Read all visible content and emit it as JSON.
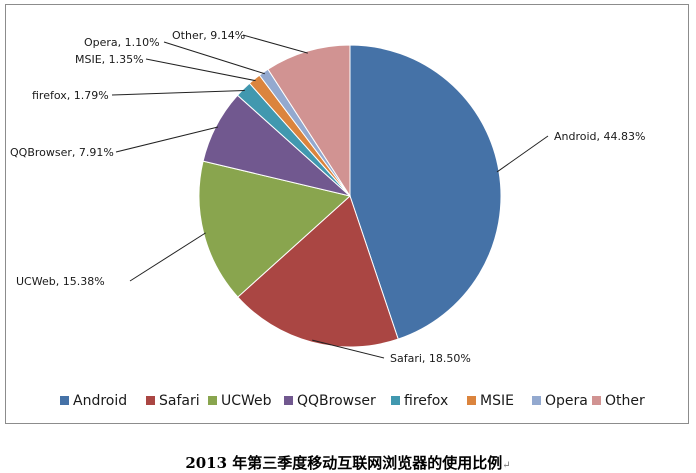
{
  "chart_data": {
    "type": "pie",
    "categories": [
      "Android",
      "Safari",
      "UCWeb",
      "QQBrowser",
      "firefox",
      "MSIE",
      "Opera",
      "Other"
    ],
    "values": [
      44.83,
      18.5,
      15.38,
      7.91,
      1.79,
      1.35,
      1.1,
      9.14
    ],
    "data_labels": [
      "Android, 44.83%",
      "Safari, 18.50%",
      "UCWeb, 15.38%",
      "QQBrowser, 7.91%",
      "firefox, 1.79%",
      "MSIE, 1.35%",
      "Opera, 1.10%",
      "Other, 9.14%"
    ],
    "colors": [
      "#4572A7",
      "#AA4643",
      "#89A54E",
      "#71588F",
      "#4198AF",
      "#DB843D",
      "#93A9CF",
      "#D19392"
    ],
    "legend_position": "bottom",
    "start": "12 o'clock, clockwise"
  },
  "caption": "2013 年第三季度移动互联网浏览器的使用比例",
  "caption_mark": "↵"
}
